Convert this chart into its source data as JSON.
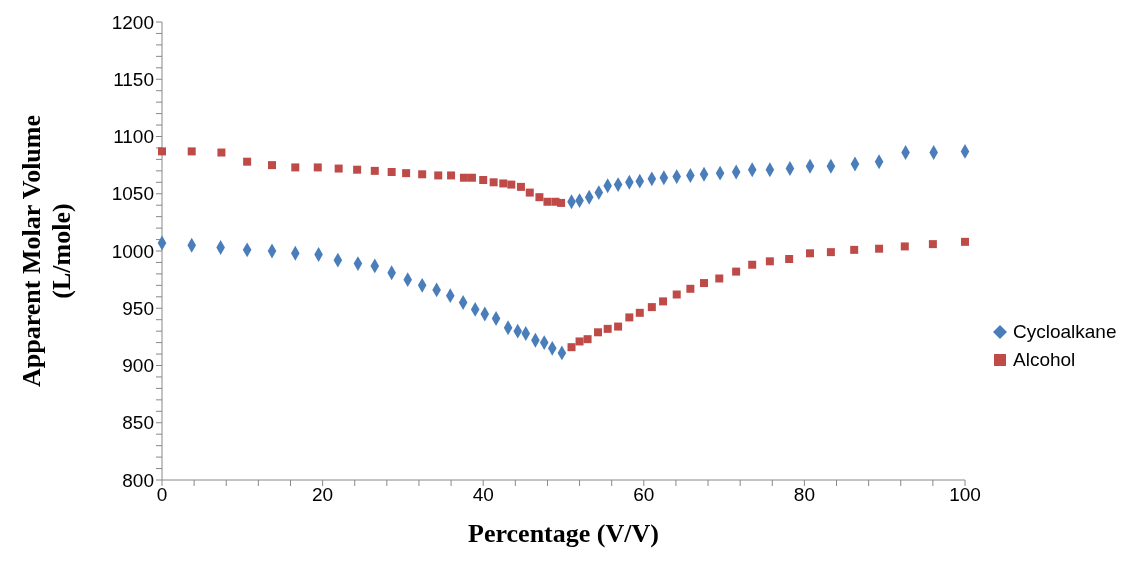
{
  "chart_data": {
    "type": "scatter",
    "xlabel": "Percentage (V/V)",
    "ylabel": "Apparent Molar Volume\n(L/mole)",
    "xlim": [
      0,
      100
    ],
    "xticks": [
      0,
      {
        "value": 4,
        "label": null
      },
      {
        "value": 8,
        "label": null
      },
      {
        "value": 12,
        "label": null
      },
      {
        "value": 16,
        "label": null
      },
      20,
      {
        "value": 24,
        "label": null
      },
      {
        "value": 28,
        "label": null
      },
      {
        "value": 32,
        "label": null
      },
      {
        "value": 36,
        "label": null
      },
      40,
      {
        "value": 44,
        "label": null
      },
      {
        "value": 48,
        "label": null
      },
      {
        "value": 52,
        "label": null
      },
      {
        "value": 56,
        "label": null
      },
      60,
      {
        "value": 64,
        "label": null
      },
      {
        "value": 68,
        "label": null
      },
      {
        "value": 72,
        "label": null
      },
      {
        "value": 76,
        "label": null
      },
      80,
      {
        "value": 84,
        "label": null
      },
      {
        "value": 88,
        "label": null
      },
      {
        "value": 92,
        "label": null
      },
      {
        "value": 96,
        "label": null
      },
      100
    ],
    "ylim": [
      800,
      1200
    ],
    "yticks": [
      800,
      {
        "value": 810,
        "label": null
      },
      {
        "value": 820,
        "label": null
      },
      {
        "value": 830,
        "label": null
      },
      {
        "value": 840,
        "label": null
      },
      850,
      {
        "value": 860,
        "label": null
      },
      {
        "value": 870,
        "label": null
      },
      {
        "value": 880,
        "label": null
      },
      {
        "value": 890,
        "label": null
      },
      900,
      {
        "value": 910,
        "label": null
      },
      {
        "value": 920,
        "label": null
      },
      {
        "value": 930,
        "label": null
      },
      {
        "value": 940,
        "label": null
      },
      950,
      {
        "value": 960,
        "label": null
      },
      {
        "value": 970,
        "label": null
      },
      {
        "value": 980,
        "label": null
      },
      {
        "value": 990,
        "label": null
      },
      1000,
      {
        "value": 1010,
        "label": null
      },
      {
        "value": 1020,
        "label": null
      },
      {
        "value": 1030,
        "label": null
      },
      {
        "value": 1040,
        "label": null
      },
      1050,
      {
        "value": 1060,
        "label": null
      },
      {
        "value": 1070,
        "label": null
      },
      {
        "value": 1080,
        "label": null
      },
      {
        "value": 1090,
        "label": null
      },
      1100,
      {
        "value": 1110,
        "label": null
      },
      {
        "value": 1120,
        "label": null
      },
      {
        "value": 1130,
        "label": null
      },
      {
        "value": 1140,
        "label": null
      },
      1150,
      {
        "value": 1160,
        "label": null
      },
      {
        "value": 1170,
        "label": null
      },
      {
        "value": 1180,
        "label": null
      },
      {
        "value": 1190,
        "label": null
      },
      1200
    ],
    "grid": false,
    "legend": "right",
    "series": [
      {
        "name": "Cycloalkane",
        "color": "#4a7ebb",
        "marker": "diamond",
        "x": [
          0,
          3.7,
          7.3,
          10.6,
          13.7,
          16.6,
          19.5,
          21.9,
          24.4,
          26.5,
          28.6,
          30.6,
          32.4,
          34.2,
          35.9,
          37.5,
          39,
          40.2,
          41.6,
          43.1,
          44.3,
          45.3,
          46.5,
          47.6,
          48.6,
          49.8,
          51,
          52,
          53.2,
          54.4,
          55.5,
          56.8,
          58.2,
          59.5,
          61,
          62.5,
          64.1,
          65.8,
          67.5,
          69.5,
          71.5,
          73.5,
          75.7,
          78.2,
          80.7,
          83.3,
          86.3,
          89.3,
          92.6,
          96.1,
          100
        ],
        "values": [
          1007,
          1005,
          1003,
          1001,
          1000,
          998,
          997,
          992,
          989,
          987,
          981,
          975,
          970,
          966,
          961,
          955,
          949,
          945,
          941,
          933,
          930,
          928,
          922,
          920,
          915,
          911,
          1043,
          1044,
          1047,
          1051,
          1057,
          1058,
          1060,
          1061,
          1063,
          1064,
          1065,
          1066,
          1067,
          1068,
          1069,
          1071,
          1071,
          1072,
          1074,
          1074,
          1076,
          1078,
          1086,
          1086,
          1087
        ]
      },
      {
        "name": "Alcohol",
        "color": "#be4b48",
        "marker": "square",
        "x": [
          0,
          3.7,
          7.4,
          10.6,
          13.7,
          16.6,
          19.4,
          22,
          24.3,
          26.5,
          28.6,
          30.4,
          32.4,
          34.4,
          36,
          37.6,
          38.6,
          40,
          41.3,
          42.5,
          43.5,
          44.7,
          45.8,
          47,
          48,
          49,
          49.7,
          51,
          52,
          53,
          54.3,
          55.5,
          56.8,
          58.2,
          59.5,
          61,
          62.4,
          64.1,
          65.8,
          67.5,
          69.4,
          71.5,
          73.5,
          75.7,
          78.1,
          80.7,
          83.3,
          86.2,
          89.3,
          92.5,
          96,
          100
        ],
        "values": [
          1087,
          1087,
          1086,
          1078,
          1075,
          1073,
          1073,
          1072,
          1071,
          1070,
          1069,
          1068,
          1067,
          1066,
          1066,
          1064,
          1064,
          1062,
          1060,
          1059,
          1058,
          1056,
          1051,
          1047,
          1043,
          1043,
          1042,
          916,
          921,
          923,
          929,
          932,
          934,
          942,
          946,
          951,
          956,
          962,
          967,
          972,
          976,
          982,
          988,
          991,
          993,
          998,
          999,
          1001,
          1002,
          1004,
          1006,
          1008
        ]
      }
    ]
  }
}
